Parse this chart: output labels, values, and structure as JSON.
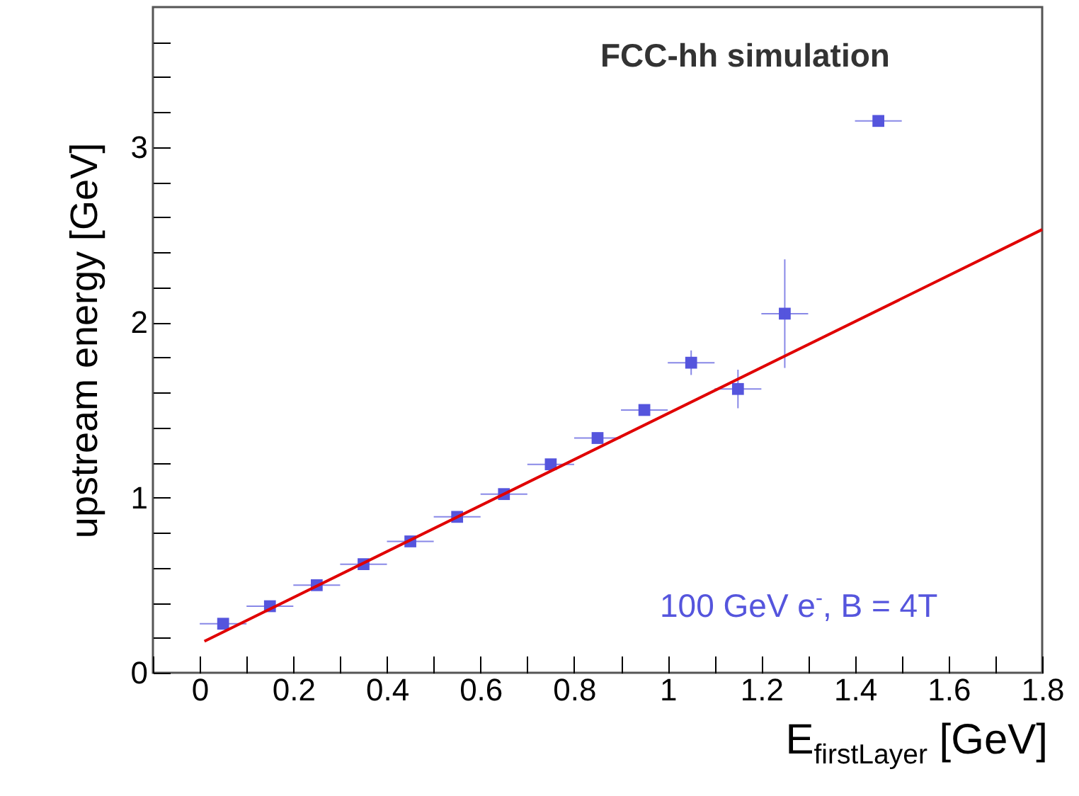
{
  "chart_data": {
    "type": "scatter",
    "xlabel": "E$_{firstLayer}$ [GeV]",
    "ylabel": "upstream energy [GeV]",
    "annotations": [
      "FCC-hh simulation",
      "100 GeV e$^{-}$, B = 4T"
    ],
    "xlim": [
      -0.1,
      1.8
    ],
    "xticks": [
      {
        "value": -0.1,
        "label": null
      },
      0,
      {
        "value": 0.1,
        "label": null
      },
      {
        "value": 0.2,
        "label": "0.2"
      },
      {
        "value": 0.3,
        "label": null
      },
      {
        "value": 0.4,
        "label": "0.4"
      },
      {
        "value": 0.5,
        "label": null
      },
      {
        "value": 0.6,
        "label": "0.6"
      },
      {
        "value": 0.7,
        "label": null
      },
      {
        "value": 0.8,
        "label": "0.8"
      },
      {
        "value": 0.9,
        "label": null
      },
      1,
      {
        "value": 1.1,
        "label": null
      },
      {
        "value": 1.2,
        "label": "1.2"
      },
      {
        "value": 1.3,
        "label": null
      },
      {
        "value": 1.4,
        "label": "1.4"
      },
      {
        "value": 1.5,
        "label": null
      },
      {
        "value": 1.6,
        "label": "1.6"
      },
      {
        "value": 1.7,
        "label": null
      },
      {
        "value": 1.8,
        "label": "1.8"
      }
    ],
    "ylim": [
      0,
      3.8
    ],
    "yticks": [
      0,
      {
        "value": 0.2,
        "label": null
      },
      {
        "value": 0.4,
        "label": null
      },
      {
        "value": 0.6,
        "label": null
      },
      {
        "value": 0.8,
        "label": null
      },
      1,
      {
        "value": 1.2,
        "label": null
      },
      {
        "value": 1.4,
        "label": null
      },
      {
        "value": 1.6,
        "label": null
      },
      {
        "value": 1.8,
        "label": null
      },
      2,
      {
        "value": 2.2,
        "label": null
      },
      {
        "value": 2.4,
        "label": null
      },
      {
        "value": 2.6,
        "label": null
      },
      {
        "value": 2.8,
        "label": null
      },
      3,
      {
        "value": 3.2,
        "label": null
      },
      {
        "value": 3.4,
        "label": null
      },
      {
        "value": 3.6,
        "label": null
      }
    ],
    "grid": false,
    "series": [
      {
        "type": "scatter",
        "color": "#5555dd",
        "marker": "square",
        "x": [
          0.05,
          0.15,
          0.25,
          0.35,
          0.45,
          0.55,
          0.65,
          0.75,
          0.85,
          0.95,
          1.05,
          1.15,
          1.25,
          1.45
        ],
        "values": [
          0.28,
          0.38,
          0.5,
          0.62,
          0.75,
          0.89,
          1.02,
          1.19,
          1.34,
          1.5,
          1.77,
          1.62,
          2.05,
          3.15
        ],
        "xerrors": [
          0.05,
          0.05,
          0.05,
          0.05,
          0.05,
          0.05,
          0.05,
          0.05,
          0.05,
          0.05,
          0.05,
          0.05,
          0.05,
          0.05
        ],
        "errors": [
          null,
          null,
          null,
          null,
          null,
          null,
          null,
          null,
          null,
          0.03,
          0.07,
          0.11,
          0.31,
          null
        ]
      },
      {
        "type": "line",
        "color": "#e00000",
        "x": [
          0.01,
          1.8
        ],
        "values": [
          0.18,
          2.53
        ]
      }
    ]
  }
}
